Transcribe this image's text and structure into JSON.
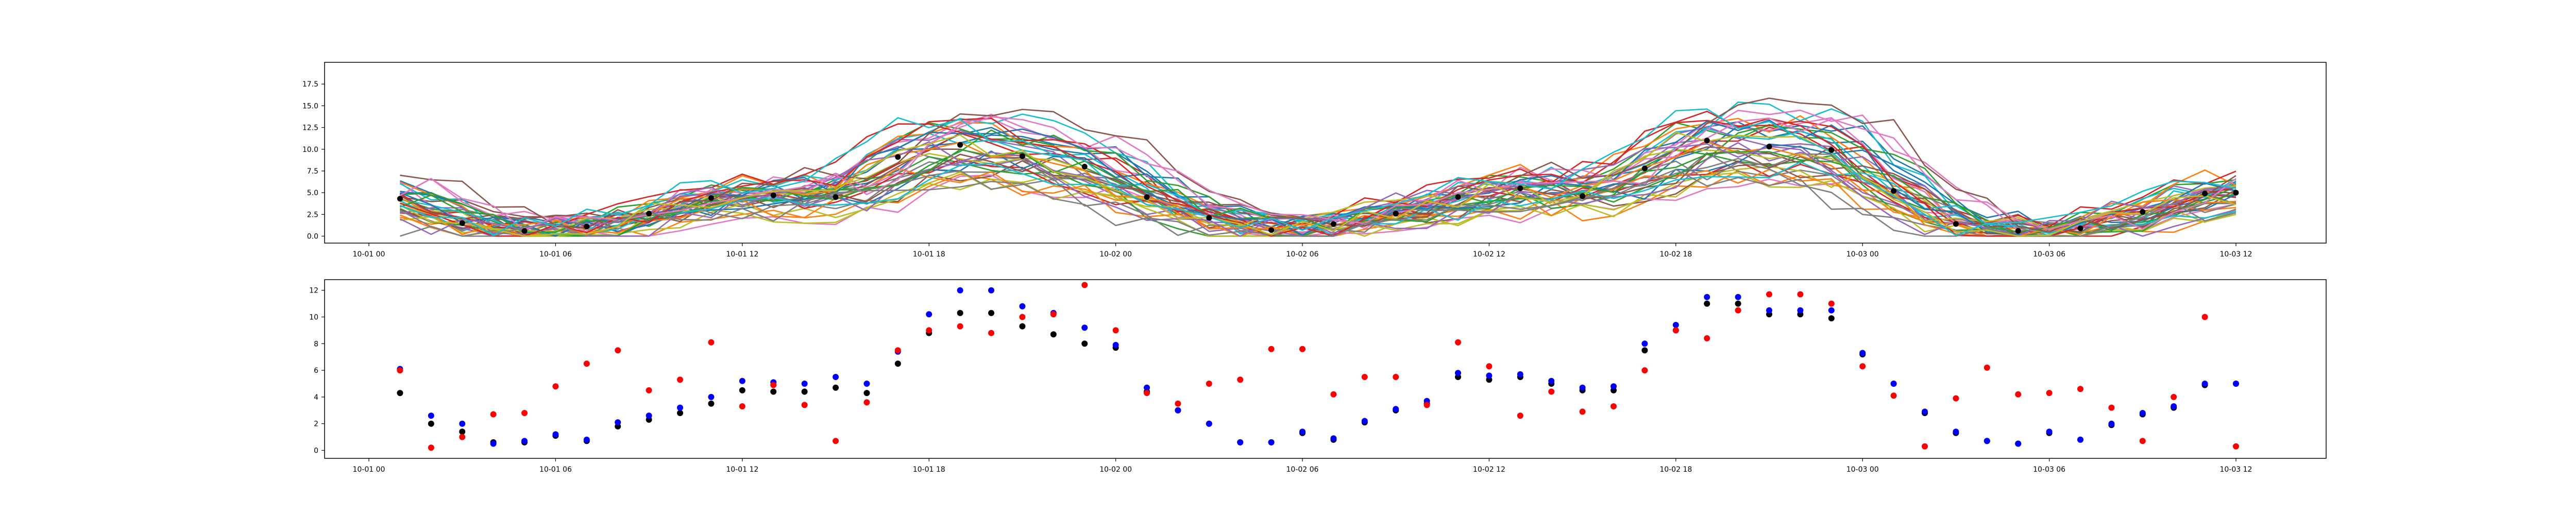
{
  "chart_data": [
    {
      "type": "line",
      "title": "",
      "xlabel": "",
      "ylabel": "",
      "x_range": [
        "10-01 00:00",
        "10-03 12:00"
      ],
      "ylim": [
        -0.8,
        20.0
      ],
      "grid": false,
      "x_ticks": [
        "10-01 00",
        "10-01 06",
        "10-01 12",
        "10-01 18",
        "10-02 00",
        "10-02 06",
        "10-02 12",
        "10-02 18",
        "10-03 00",
        "10-03 06",
        "10-03 12"
      ],
      "y_ticks": [
        "0.0",
        "2.5",
        "5.0",
        "7.5",
        "10.0",
        "12.5",
        "15.0",
        "17.5"
      ],
      "ensemble": {
        "members": 40,
        "start": "10-01 01:00",
        "step_hours": 1,
        "colors": [
          "#1f77b4",
          "#ff7f0e",
          "#2ca02c",
          "#d62728",
          "#9467bd",
          "#8c564b",
          "#e377c2",
          "#7f7f7f",
          "#bcbd22",
          "#17becf"
        ]
      },
      "series": [
        {
          "color": "#000000",
          "marker": "dot",
          "x": [
            "10-01 01",
            "10-01 03",
            "10-01 05",
            "10-01 07",
            "10-01 09",
            "10-01 11",
            "10-01 13",
            "10-01 15",
            "10-01 17",
            "10-01 19",
            "10-01 21",
            "10-01 23",
            "10-02 01",
            "10-02 03",
            "10-02 05",
            "10-02 07",
            "10-02 09",
            "10-02 11",
            "10-02 13",
            "10-02 15",
            "10-02 17",
            "10-02 19",
            "10-02 21",
            "10-02 23",
            "10-03 01",
            "10-03 03",
            "10-03 05",
            "10-03 07",
            "10-03 09",
            "10-03 11",
            "10-03 12"
          ],
          "values": [
            4.3,
            1.5,
            0.6,
            1.1,
            2.6,
            4.4,
            4.7,
            4.5,
            9.1,
            10.5,
            9.2,
            8.0,
            4.5,
            2.1,
            0.7,
            1.4,
            2.6,
            4.5,
            5.5,
            4.6,
            7.8,
            11.0,
            10.3,
            9.9,
            5.2,
            1.4,
            0.6,
            0.9,
            2.8,
            4.9,
            5.0
          ]
        }
      ]
    },
    {
      "type": "scatter",
      "title": "",
      "xlabel": "",
      "ylabel": "",
      "x_range": [
        "10-01 00:00",
        "10-03 12:00"
      ],
      "ylim": [
        -0.6,
        12.8
      ],
      "grid": false,
      "x_ticks": [
        "10-01 00",
        "10-01 06",
        "10-01 12",
        "10-01 18",
        "10-02 00",
        "10-02 06",
        "10-02 12",
        "10-02 18",
        "10-03 00",
        "10-03 06",
        "10-03 12"
      ],
      "y_ticks": [
        "0",
        "2",
        "4",
        "6",
        "8",
        "10",
        "12"
      ],
      "x": [
        "10-01 01",
        "10-01 02",
        "10-01 03",
        "10-01 04",
        "10-01 05",
        "10-01 06",
        "10-01 07",
        "10-01 08",
        "10-01 09",
        "10-01 10",
        "10-01 11",
        "10-01 12",
        "10-01 13",
        "10-01 14",
        "10-01 15",
        "10-01 16",
        "10-01 17",
        "10-01 18",
        "10-01 19",
        "10-01 20",
        "10-01 21",
        "10-01 22",
        "10-01 23",
        "10-02 00",
        "10-02 01",
        "10-02 02",
        "10-02 03",
        "10-02 04",
        "10-02 05",
        "10-02 06",
        "10-02 07",
        "10-02 08",
        "10-02 09",
        "10-02 10",
        "10-02 11",
        "10-02 12",
        "10-02 13",
        "10-02 14",
        "10-02 15",
        "10-02 16",
        "10-02 17",
        "10-02 18",
        "10-02 19",
        "10-02 20",
        "10-02 21",
        "10-02 22",
        "10-02 23",
        "10-03 00",
        "10-03 01",
        "10-03 02",
        "10-03 03",
        "10-03 04",
        "10-03 05",
        "10-03 06",
        "10-03 07",
        "10-03 08",
        "10-03 09",
        "10-03 10",
        "10-03 11",
        "10-03 12"
      ],
      "series": [
        {
          "color": "#000000",
          "values": [
            4.3,
            2.0,
            1.4,
            0.6,
            0.6,
            1.1,
            0.7,
            1.8,
            2.3,
            2.8,
            3.5,
            4.5,
            4.4,
            4.4,
            4.7,
            4.3,
            6.5,
            8.8,
            10.3,
            10.3,
            9.3,
            8.7,
            8.0,
            7.7,
            4.4,
            3.0,
            2.0,
            0.6,
            0.6,
            1.3,
            0.8,
            2.1,
            3.0,
            3.5,
            5.5,
            5.3,
            5.5,
            5.0,
            4.5,
            4.5,
            7.5,
            9.0,
            11.0,
            11.0,
            10.2,
            10.2,
            9.9,
            7.2,
            5.0,
            2.8,
            1.3,
            0.7,
            0.5,
            1.3,
            0.8,
            1.9,
            2.7,
            3.2,
            4.9,
            5.0
          ]
        },
        {
          "color": "#0000ff",
          "values": [
            6.1,
            2.6,
            2.0,
            0.5,
            0.7,
            1.2,
            0.8,
            2.1,
            2.6,
            3.2,
            4.0,
            5.2,
            5.1,
            5.0,
            5.5,
            5.0,
            7.4,
            10.2,
            12.0,
            12.0,
            10.8,
            10.3,
            9.2,
            7.9,
            4.7,
            3.0,
            2.0,
            0.6,
            0.6,
            1.4,
            0.9,
            2.2,
            3.1,
            3.7,
            5.8,
            5.6,
            5.7,
            5.2,
            4.7,
            4.8,
            8.0,
            9.4,
            11.5,
            11.5,
            10.5,
            10.5,
            10.5,
            7.3,
            5.0,
            2.9,
            1.4,
            0.7,
            0.5,
            1.4,
            0.8,
            2.0,
            2.8,
            3.3,
            5.0,
            5.0
          ]
        },
        {
          "color": "#ff0000",
          "values": [
            6.0,
            0.2,
            1.0,
            2.7,
            2.8,
            4.8,
            6.5,
            7.5,
            4.5,
            5.3,
            8.1,
            3.3,
            4.9,
            3.4,
            0.7,
            3.6,
            7.5,
            9.0,
            9.3,
            8.8,
            10.0,
            10.2,
            12.4,
            9.0,
            4.3,
            3.5,
            5.0,
            5.3,
            7.6,
            7.6,
            4.2,
            5.5,
            5.5,
            3.4,
            8.1,
            6.3,
            2.6,
            4.4,
            2.9,
            3.3,
            6.0,
            9.0,
            8.4,
            10.5,
            11.7,
            11.7,
            11.0,
            6.3,
            4.1,
            0.3,
            3.9,
            6.2,
            4.2,
            4.3,
            4.6,
            3.2,
            0.7,
            4.0,
            10.0,
            0.3
          ]
        }
      ]
    }
  ]
}
